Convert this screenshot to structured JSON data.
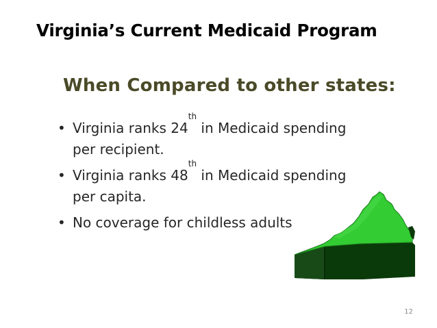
{
  "slide": {
    "title": "Virginia’s Current Medicaid Program",
    "subtitle": "When Compared to other states:",
    "bullets": [
      {
        "dot": "•",
        "pre": "Virginia ranks 24",
        "sup": "th",
        "post": " in Medicaid spending",
        "line2": "per recipient."
      },
      {
        "dot": "•",
        "pre": "Virginia ranks 48",
        "sup": "th",
        "post": " in Medicaid spending",
        "line2": "per capita."
      },
      {
        "dot": "•",
        "pre": "No coverage for childless adults",
        "sup": "",
        "post": "",
        "line2": ""
      }
    ],
    "page_number": "12",
    "map_icon": "virginia-map-icon",
    "colors": {
      "title": "#000000",
      "subtitle": "#4a4a28",
      "body_text": "#262626",
      "map_top": "#33cc33",
      "map_side": "#0a3a0a"
    }
  }
}
